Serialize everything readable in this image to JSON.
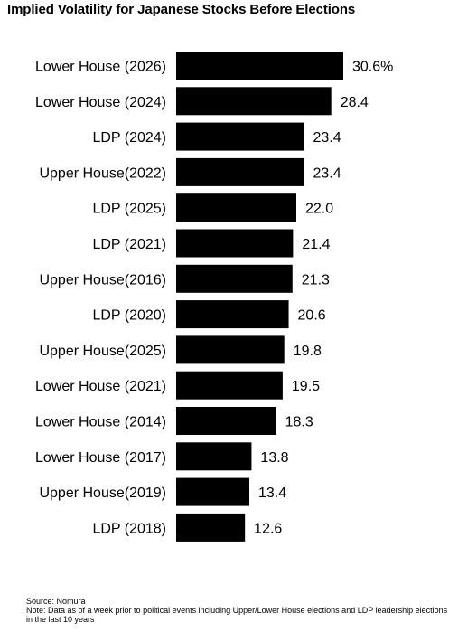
{
  "title": "Implied Volatility for Japanese Stocks Before Elections",
  "footer": {
    "source": "Source: Nomura",
    "note": "Note: Data as of a week prior to political events including Upper/Lower House elections and LDP leadership elections in the last 10 years"
  },
  "colors": {
    "bar": "#000000",
    "text": "#000000",
    "background": "#ffffff"
  },
  "chart_data": {
    "type": "bar",
    "orientation": "horizontal",
    "title": "Implied Volatility for Japanese Stocks Before Elections",
    "categories": [
      "Lower House (2026)",
      "Lower House (2024)",
      "LDP (2024)",
      "Upper House(2022)",
      "LDP (2025)",
      "LDP (2021)",
      "Upper House(2016)",
      "LDP (2020)",
      "Upper House(2025)",
      "Lower House (2021)",
      "Lower House (2014)",
      "Lower House (2017)",
      "Upper House(2019)",
      "LDP (2018)"
    ],
    "values": [
      30.6,
      28.4,
      23.4,
      23.4,
      22.0,
      21.4,
      21.3,
      20.6,
      19.8,
      19.5,
      18.3,
      13.8,
      13.4,
      12.6
    ],
    "value_labels": [
      "30.6%",
      "28.4",
      "23.4",
      "23.4",
      "22.0",
      "21.4",
      "21.3",
      "20.6",
      "19.8",
      "19.5",
      "18.3",
      "13.8",
      "13.4",
      "12.6"
    ],
    "xlim": [
      0,
      30.6
    ],
    "grid": false,
    "legend": false
  }
}
